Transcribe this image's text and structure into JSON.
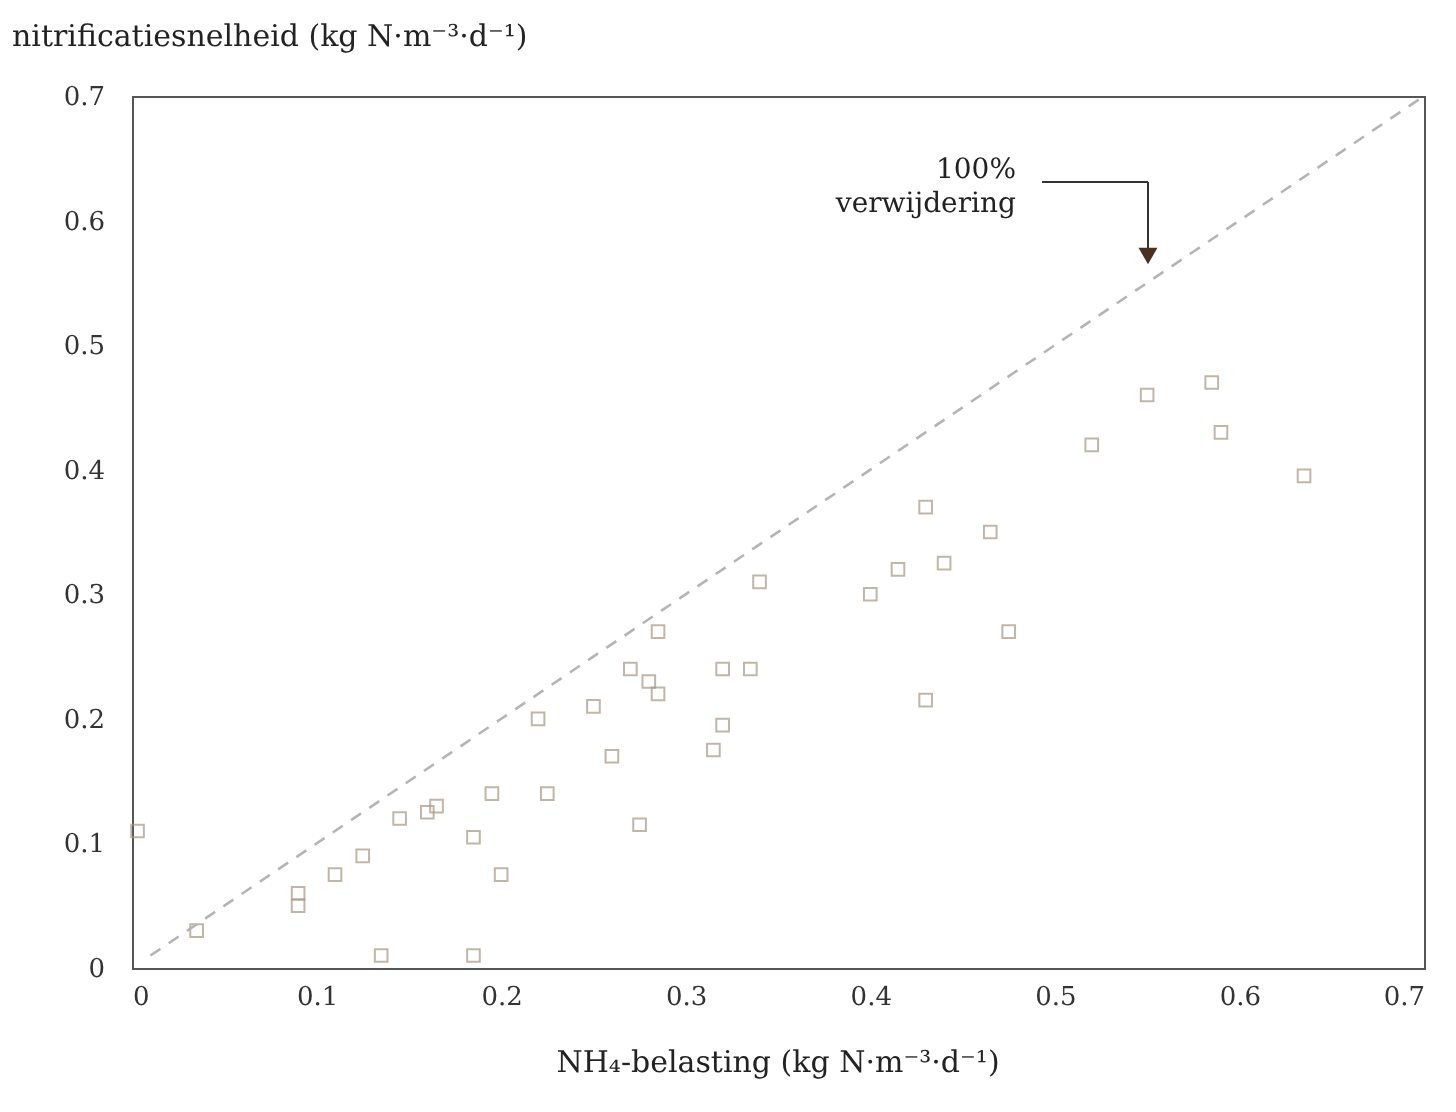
{
  "chart_data": {
    "type": "scatter",
    "xlabel": "NH₄-belasting (kg N·m⁻³·d⁻¹)",
    "ylabel": "nitrificatiesnelheid (kg N·m⁻³·d⁻¹)",
    "xlim": [
      0,
      0.7
    ],
    "ylim": [
      0,
      0.7
    ],
    "xticks": [
      0,
      0.1,
      0.2,
      0.3,
      0.4,
      0.5,
      0.6,
      0.7
    ],
    "yticks": [
      0,
      0.1,
      0.2,
      0.3,
      0.4,
      0.5,
      0.6,
      0.7
    ],
    "grid": false,
    "annotations": [
      "100%\nverwijdering"
    ],
    "series": [
      {
        "color": "#a89682",
        "marker": "square",
        "x": [
          0.003,
          0.035,
          0.09,
          0.09,
          0.11,
          0.125,
          0.135,
          0.145,
          0.16,
          0.165,
          0.185,
          0.185,
          0.195,
          0.2,
          0.22,
          0.225,
          0.25,
          0.26,
          0.27,
          0.275,
          0.28,
          0.285,
          0.285,
          0.315,
          0.32,
          0.32,
          0.335,
          0.34,
          0.4,
          0.415,
          0.43,
          0.44,
          0.43,
          0.465,
          0.475,
          0.52,
          0.55,
          0.585,
          0.59,
          0.635
        ],
        "values": [
          0.11,
          0.03,
          0.05,
          0.06,
          0.075,
          0.09,
          0.01,
          0.12,
          0.125,
          0.13,
          0.01,
          0.105,
          0.14,
          0.075,
          0.2,
          0.14,
          0.21,
          0.17,
          0.24,
          0.115,
          0.23,
          0.27,
          0.22,
          0.175,
          0.24,
          0.195,
          0.24,
          0.31,
          0.3,
          0.32,
          0.37,
          0.325,
          0.215,
          0.35,
          0.27,
          0.42,
          0.46,
          0.47,
          0.43,
          0.395
        ]
      },
      {
        "type": "line",
        "color": "#b4b4b4",
        "line_style": "dashed",
        "x": [
          0.01,
          0.7
        ],
        "values": [
          0.01,
          0.7
        ]
      }
    ]
  }
}
